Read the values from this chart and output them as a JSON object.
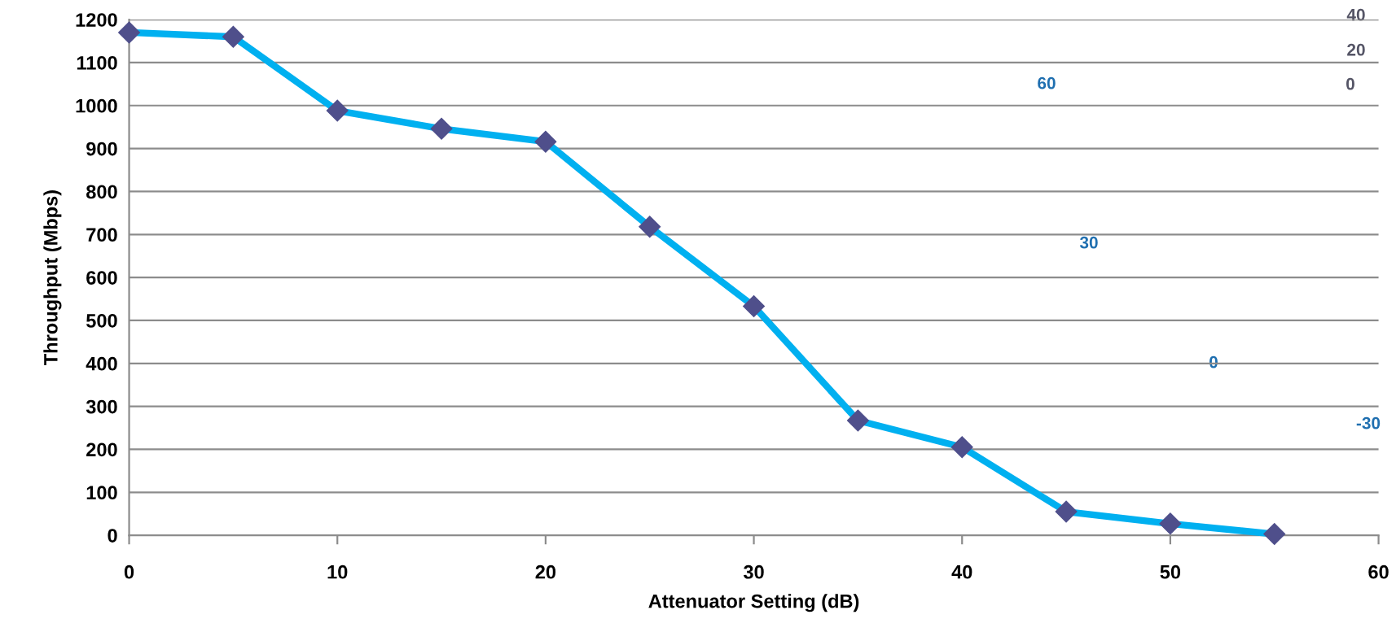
{
  "chart_data": [
    {
      "type": "line",
      "xlabel": "Attenuator Setting (dB)",
      "ylabel": "Throughput (Mbps)",
      "x": [
        0,
        5,
        10,
        15,
        20,
        25,
        30,
        35,
        40,
        45,
        50,
        55
      ],
      "series": [
        {
          "color": "#00b0f0",
          "values": [
            1170,
            1160,
            988,
            946,
            916,
            718,
            533,
            267,
            205,
            55,
            27,
            3
          ]
        }
      ],
      "marker": "diamond",
      "line_style": "solid",
      "xlim": [
        0,
        60
      ],
      "xticks": [
        0,
        10,
        20,
        30,
        40,
        50,
        60
      ],
      "ylim": [
        0,
        1200
      ],
      "yticks": [
        0,
        100,
        200,
        300,
        400,
        500,
        600,
        700,
        800,
        900,
        1000,
        1100,
        1200
      ],
      "grid": "y",
      "legend": false
    },
    {
      "type": "other",
      "annotations": [
        "60",
        "30",
        "0",
        "-30",
        "40",
        "20",
        "0"
      ]
    }
  ]
}
